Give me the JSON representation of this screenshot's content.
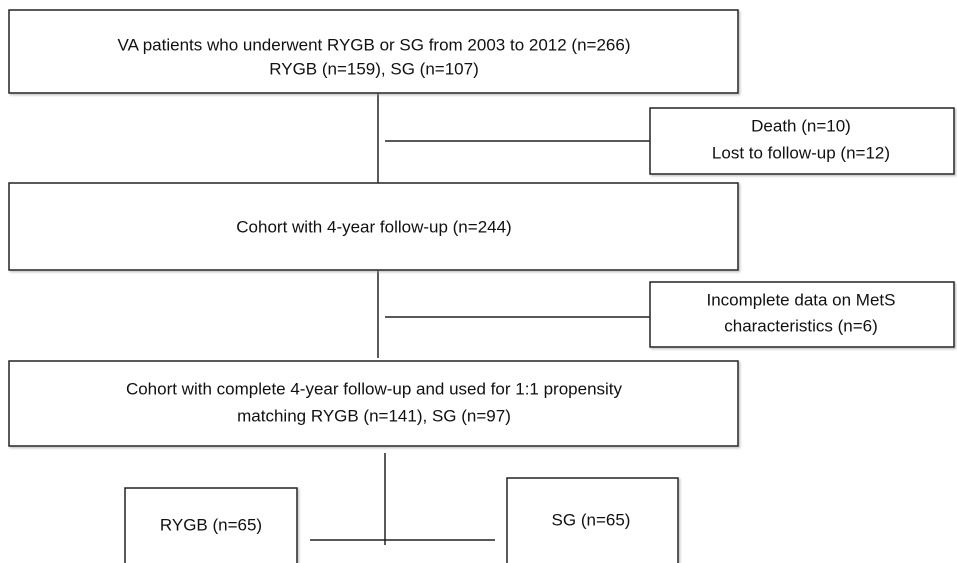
{
  "nodes": [
    {
      "lines": [
        "VA patients who underwent RYGB or SG from 2003 to 2012 (n=266)",
        "RYGB (n=159), SG (n=107)"
      ]
    },
    {
      "lines": [
        "Death (n=10)",
        "Lost to follow-up (n=12)"
      ]
    },
    {
      "lines": [
        "Cohort with 4-year follow-up (n=244)"
      ]
    },
    {
      "lines": [
        "Incomplete data on MetS",
        "characteristics (n=6)"
      ]
    },
    {
      "lines": [
        "Cohort with complete 4-year follow-up and used for 1:1 propensity",
        "matching RYGB (n=141), SG (n=97)"
      ]
    },
    {
      "lines": [
        "RYGB (n=65)"
      ]
    },
    {
      "lines": [
        "SG (n=65)"
      ]
    }
  ]
}
